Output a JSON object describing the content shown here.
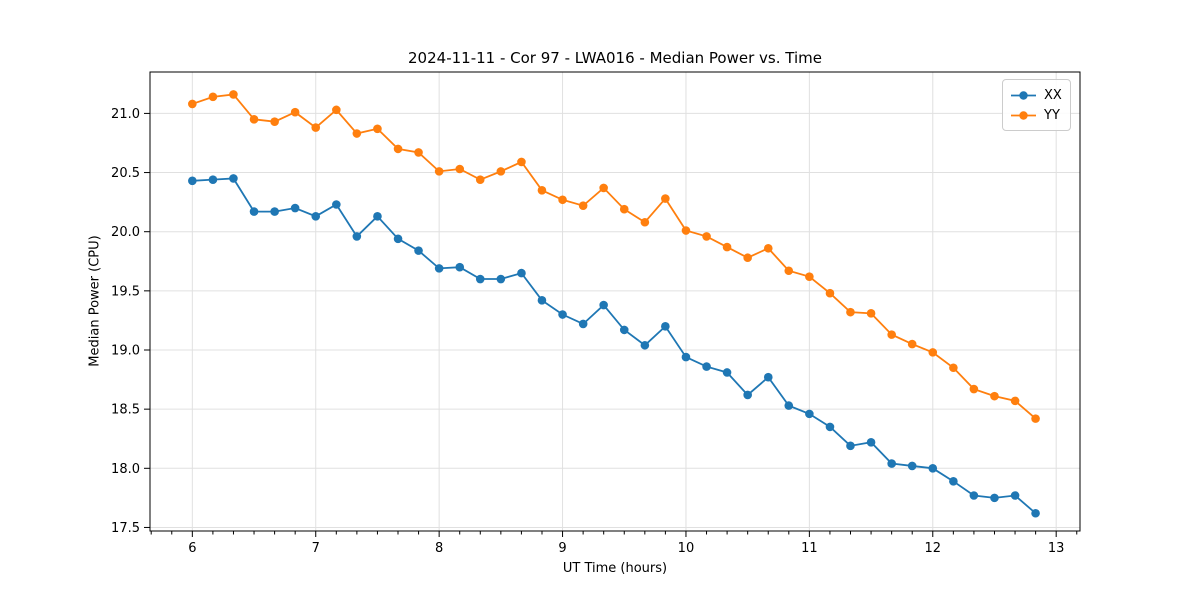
{
  "chart_data": {
    "type": "line",
    "title": "2024-11-11 - Cor 97 - LWA016 - Median Power vs. Time",
    "xlabel": "UT Time (hours)",
    "ylabel": "Median Power (CPU)",
    "xlim": [
      5.657,
      13.193
    ],
    "ylim": [
      17.47,
      21.35
    ],
    "xticks": [
      6,
      7,
      8,
      9,
      10,
      11,
      12,
      13
    ],
    "xtick_labels": [
      "6",
      "7",
      "8",
      "9",
      "10",
      "11",
      "12",
      "13"
    ],
    "yticks": [
      17.5,
      18.0,
      18.5,
      19.0,
      19.5,
      20.0,
      20.5,
      21.0
    ],
    "ytick_labels": [
      "17.5",
      "18.0",
      "18.5",
      "19.0",
      "19.5",
      "20.0",
      "20.5",
      "21.0"
    ],
    "x_minor_tick_step_hours": 0.166667,
    "grid": true,
    "grid_color": "#e0e0e0",
    "spine_color": "#000000",
    "legend_position": "upper right",
    "x": [
      6.0,
      6.167,
      6.333,
      6.5,
      6.667,
      6.833,
      7.0,
      7.167,
      7.333,
      7.5,
      7.667,
      7.833,
      8.0,
      8.167,
      8.333,
      8.5,
      8.667,
      8.833,
      9.0,
      9.167,
      9.333,
      9.5,
      9.667,
      9.833,
      10.0,
      10.167,
      10.333,
      10.5,
      10.667,
      10.833,
      11.0,
      11.167,
      11.333,
      11.5,
      11.667,
      11.833,
      12.0,
      12.167,
      12.333,
      12.5,
      12.667,
      12.833
    ],
    "series": [
      {
        "name": "XX",
        "color": "#1f77b4",
        "values": [
          20.43,
          20.44,
          20.45,
          20.17,
          20.17,
          20.2,
          20.13,
          20.23,
          19.96,
          20.13,
          19.94,
          19.84,
          19.69,
          19.7,
          19.6,
          19.6,
          19.65,
          19.42,
          19.3,
          19.22,
          19.38,
          19.17,
          19.04,
          19.2,
          18.94,
          18.86,
          18.81,
          18.62,
          18.77,
          18.53,
          18.46,
          18.35,
          18.19,
          18.22,
          18.04,
          18.02,
          18.0,
          17.89,
          17.77,
          17.75,
          17.77,
          17.62
        ]
      },
      {
        "name": "YY",
        "color": "#ff7f0e",
        "values": [
          21.08,
          21.14,
          21.16,
          20.95,
          20.93,
          21.01,
          20.88,
          21.03,
          20.83,
          20.87,
          20.7,
          20.67,
          20.51,
          20.53,
          20.44,
          20.51,
          20.59,
          20.35,
          20.27,
          20.22,
          20.37,
          20.19,
          20.08,
          20.28,
          20.01,
          19.96,
          19.87,
          19.78,
          19.86,
          19.67,
          19.62,
          19.48,
          19.32,
          19.31,
          19.13,
          19.05,
          18.98,
          18.85,
          18.67,
          18.61,
          18.57,
          18.42
        ]
      }
    ]
  }
}
